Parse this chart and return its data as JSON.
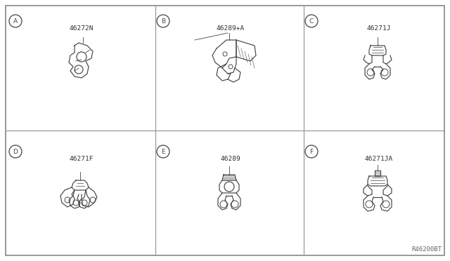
{
  "bg_color": "#ffffff",
  "panel_bg": "#ffffff",
  "border_color": "#888888",
  "line_color": "#444444",
  "grid_color": "#999999",
  "text_color": "#333333",
  "ref_code": "R46200BT",
  "panels": [
    {
      "id": "A",
      "part": "46272N",
      "col": 0,
      "row": 0
    },
    {
      "id": "B",
      "part": "46289+A",
      "col": 1,
      "row": 0
    },
    {
      "id": "C",
      "part": "46271J",
      "col": 2,
      "row": 0
    },
    {
      "id": "D",
      "part": "46271F",
      "col": 0,
      "row": 1
    },
    {
      "id": "E",
      "part": "46289",
      "col": 1,
      "row": 1
    },
    {
      "id": "F",
      "part": "46271JA",
      "col": 2,
      "row": 1
    }
  ],
  "figsize": [
    6.4,
    3.72
  ],
  "dpi": 100
}
